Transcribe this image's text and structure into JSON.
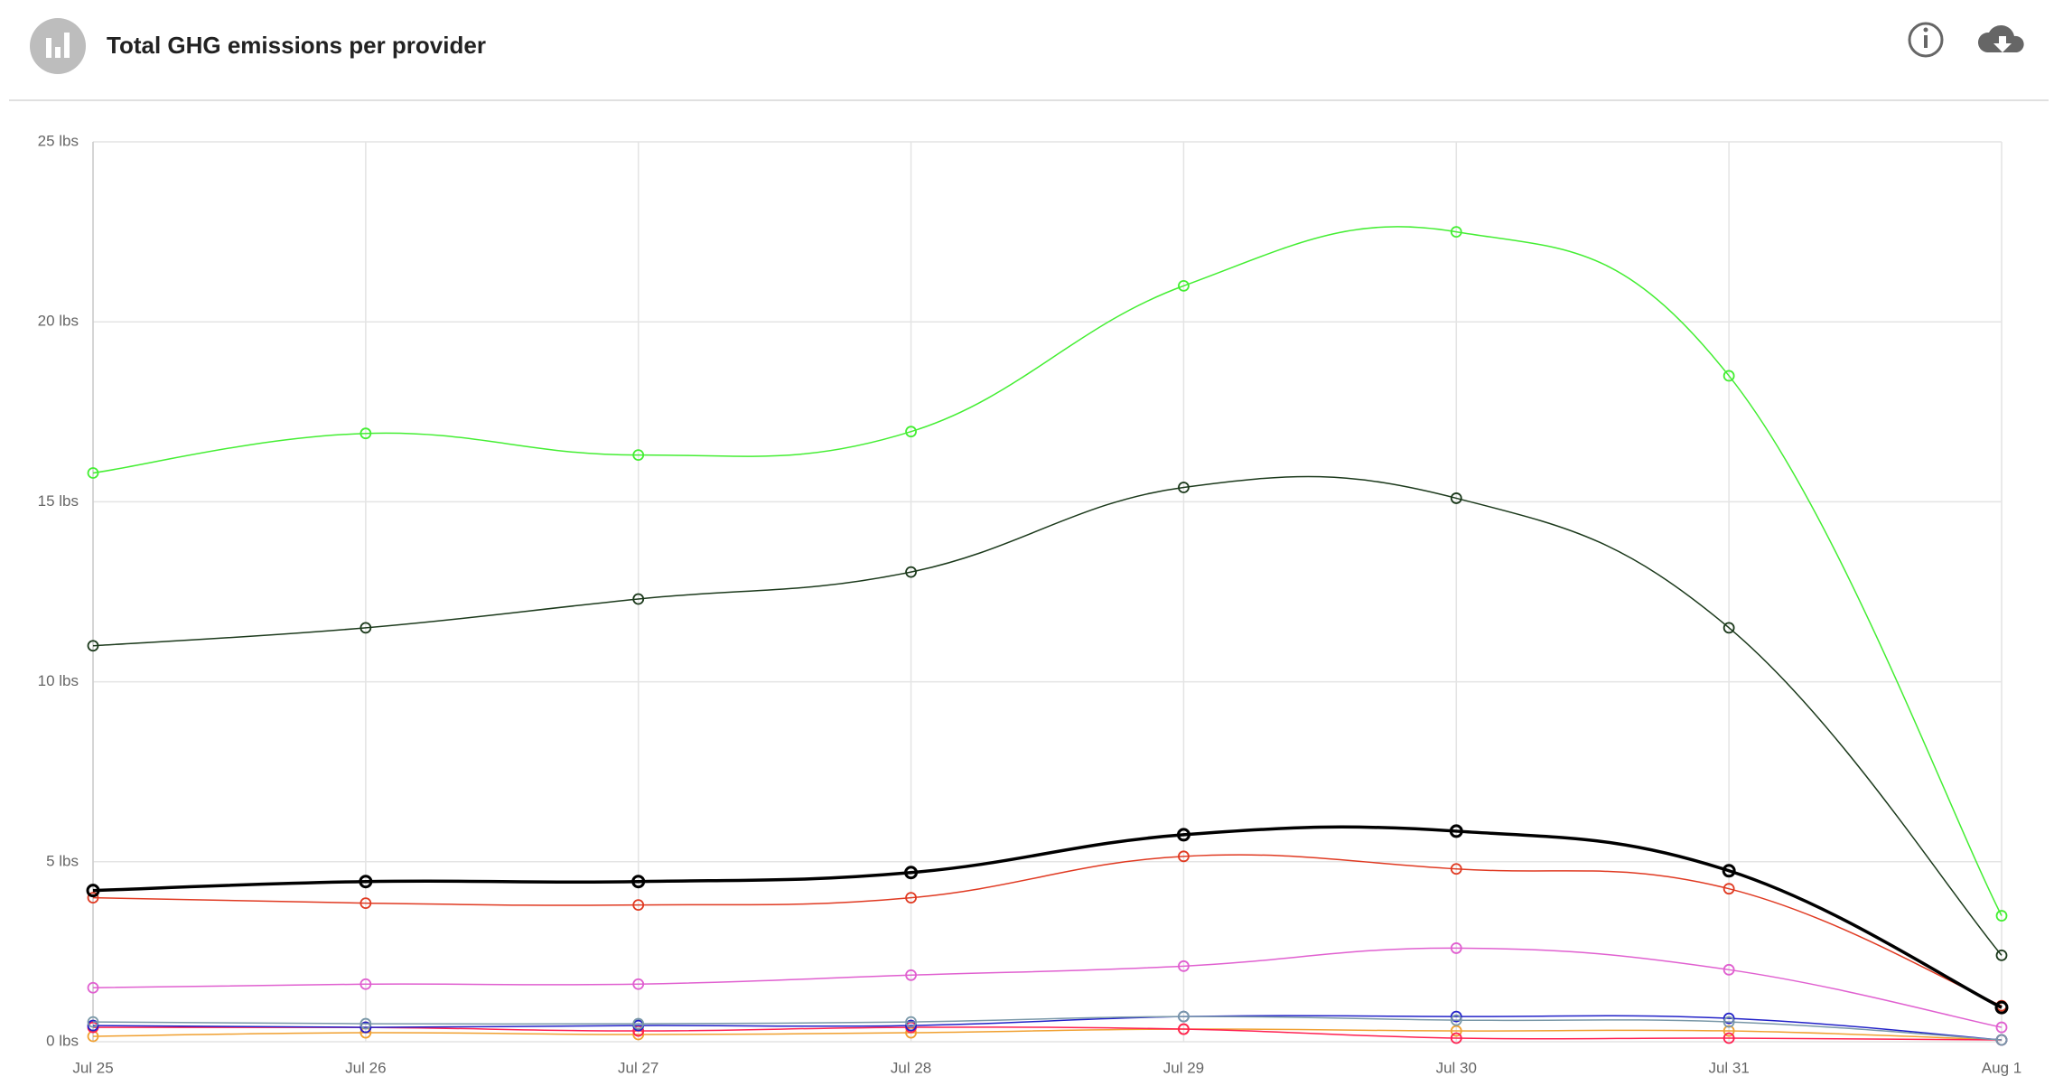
{
  "chart_data": {
    "type": "line",
    "title": "Total GHG emissions per provider",
    "categories": [
      "Jul 25",
      "Jul 26",
      "Jul 27",
      "Jul 28",
      "Jul 29",
      "Jul 30",
      "Jul 31",
      "Aug 1"
    ],
    "ylim": [
      0,
      25
    ],
    "yticks": [
      {
        "value": 0,
        "label": "0 lbs"
      },
      {
        "value": 5,
        "label": "5 lbs"
      },
      {
        "value": 10,
        "label": "10 lbs"
      },
      {
        "value": 15,
        "label": "15 lbs"
      },
      {
        "value": 20,
        "label": "20 lbs"
      },
      {
        "value": 25,
        "label": "25 lbs"
      }
    ],
    "grid": true,
    "series": [
      {
        "color": "#44ee33",
        "line_width": 1.5,
        "values": [
          15.8,
          16.9,
          16.3,
          16.95,
          21.0,
          22.5,
          18.5,
          3.5
        ]
      },
      {
        "color": "#1c3a1c",
        "line_width": 1.5,
        "values": [
          11.0,
          11.5,
          12.3,
          13.05,
          15.4,
          15.1,
          11.5,
          2.4
        ]
      },
      {
        "color": "#000000",
        "line_width": 3.5,
        "values": [
          4.2,
          4.45,
          4.45,
          4.7,
          5.75,
          5.85,
          4.75,
          0.95
        ]
      },
      {
        "color": "#e03a22",
        "line_width": 1.5,
        "values": [
          4.0,
          3.85,
          3.8,
          4.0,
          5.15,
          4.8,
          4.25,
          1.0
        ]
      },
      {
        "color": "#e060d0",
        "line_width": 1.5,
        "values": [
          1.5,
          1.6,
          1.6,
          1.85,
          2.1,
          2.6,
          2.0,
          0.4
        ]
      },
      {
        "color": "#7a98a8",
        "line_width": 1.5,
        "values": [
          0.55,
          0.5,
          0.5,
          0.55,
          0.7,
          0.6,
          0.55,
          0.05
        ]
      },
      {
        "color": "#2222c8",
        "line_width": 1.5,
        "values": [
          0.45,
          0.4,
          0.45,
          0.45,
          0.7,
          0.7,
          0.65,
          0.05
        ]
      },
      {
        "color": "#ff2050",
        "line_width": 1.5,
        "values": [
          0.4,
          0.4,
          0.3,
          0.4,
          0.35,
          0.1,
          0.1,
          0.05
        ]
      },
      {
        "color": "#f0a030",
        "line_width": 1.5,
        "values": [
          0.15,
          0.25,
          0.2,
          0.25,
          0.35,
          0.3,
          0.3,
          0.05
        ]
      }
    ]
  }
}
